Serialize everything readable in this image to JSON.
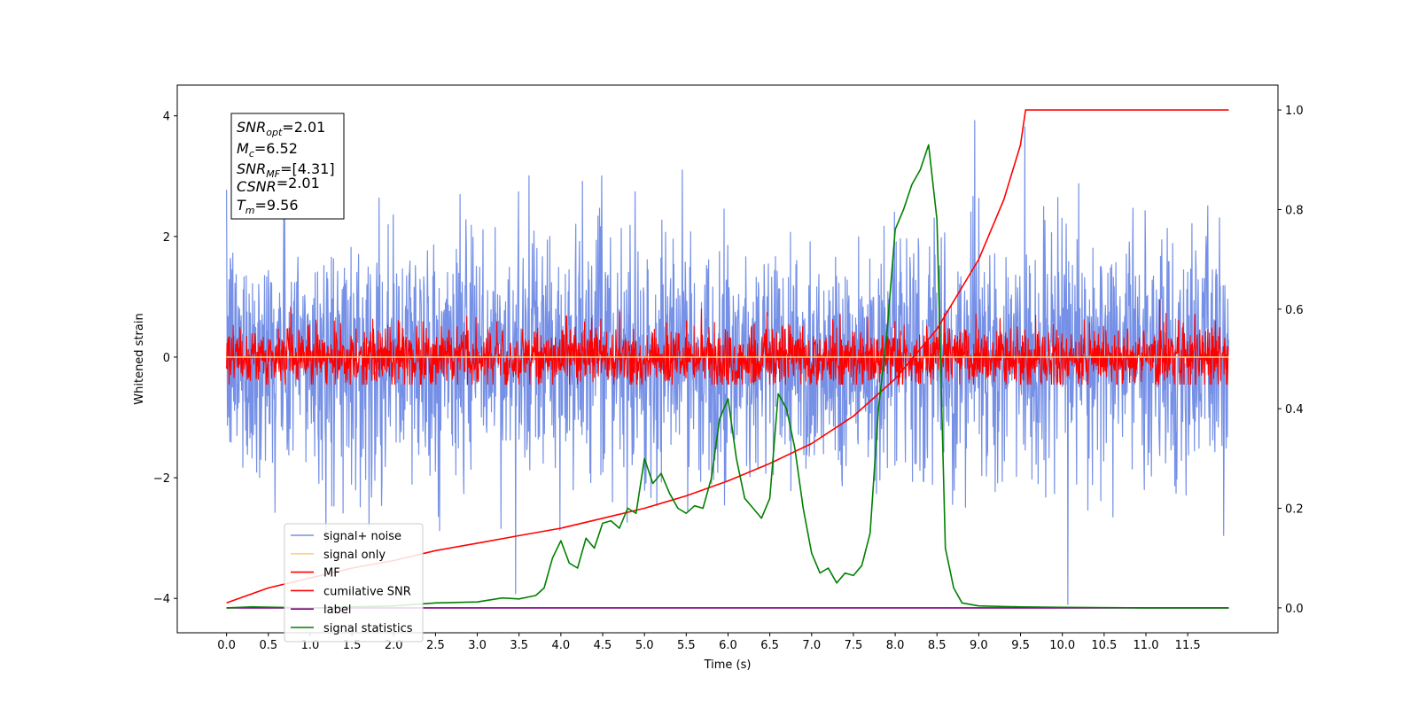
{
  "chart_data": {
    "type": "line",
    "xlabel": "Time (s)",
    "ylabel": "Whitened strain",
    "x_ticks": [
      "0.0",
      "0.5",
      "1.0",
      "1.5",
      "2.0",
      "2.5",
      "3.0",
      "3.5",
      "4.0",
      "4.5",
      "5.0",
      "5.5",
      "6.0",
      "6.5",
      "7.0",
      "7.5",
      "8.0",
      "8.5",
      "9.0",
      "9.5",
      "10.0",
      "10.5",
      "11.0",
      "11.5"
    ],
    "xlim": [
      -0.59,
      12.58
    ],
    "ylim": [
      -4.57,
      4.51
    ],
    "y_ticks": [
      "−4",
      "−2",
      "0",
      "2",
      "4"
    ],
    "y2lim": [
      -0.05,
      1.05
    ],
    "y2_ticks": [
      "0.0",
      "0.2",
      "0.4",
      "0.6",
      "0.8",
      "1.0"
    ],
    "legend_position": "lower-left",
    "annotation": [
      {
        "base": "SNR",
        "sub": "opt",
        "value": "=2.01"
      },
      {
        "base": "M",
        "sub": "c",
        "value": "=6.52"
      },
      {
        "base": "SNR",
        "sub": "MF",
        "value": "=[4.31]"
      },
      {
        "base": "CSNR",
        "sub": "",
        "value": "=2.01"
      },
      {
        "base": "T",
        "sub": "m",
        "value": "=9.56"
      }
    ],
    "series": [
      {
        "name": "signal+ noise",
        "color": "#7590e6",
        "axis": "left",
        "kind": "noise",
        "x_range": [
          0,
          11.99
        ],
        "y_range": [
          -4.1,
          4.1
        ],
        "std": 1.0
      },
      {
        "name": "signal only",
        "color": "#ffd27f",
        "axis": "left",
        "kind": "flat",
        "x_range": [
          0,
          11.99
        ],
        "value": 0
      },
      {
        "name": "MF",
        "color": "#ff0000",
        "axis": "left",
        "kind": "noise",
        "x_range": [
          0,
          11.99
        ],
        "y_range": [
          -0.45,
          0.95
        ],
        "std": 0.25
      },
      {
        "name": "cumilative SNR",
        "color": "#ff0000",
        "axis": "right",
        "x": [
          0,
          0.5,
          1.0,
          1.5,
          2.0,
          2.5,
          3.0,
          3.5,
          4.0,
          4.5,
          5.0,
          5.5,
          6.0,
          6.5,
          7.0,
          7.5,
          8.0,
          8.5,
          9.0,
          9.3,
          9.5,
          9.56,
          11.99
        ],
        "y": [
          0.01,
          0.04,
          0.06,
          0.08,
          0.095,
          0.115,
          0.13,
          0.145,
          0.16,
          0.18,
          0.2,
          0.225,
          0.255,
          0.29,
          0.33,
          0.385,
          0.46,
          0.56,
          0.7,
          0.82,
          0.93,
          1.0,
          1.0
        ]
      },
      {
        "name": "label",
        "color": "#800080",
        "axis": "right",
        "x": [
          0,
          11.99
        ],
        "y": [
          0,
          0
        ]
      },
      {
        "name": "signal statistics",
        "color": "#008000",
        "axis": "right",
        "x": [
          0,
          0.3,
          1.0,
          2.0,
          2.5,
          3.0,
          3.3,
          3.5,
          3.7,
          3.8,
          3.9,
          4.0,
          4.1,
          4.2,
          4.3,
          4.4,
          4.5,
          4.6,
          4.7,
          4.8,
          4.9,
          5.0,
          5.1,
          5.2,
          5.3,
          5.4,
          5.5,
          5.6,
          5.7,
          5.8,
          5.9,
          6.0,
          6.1,
          6.2,
          6.3,
          6.4,
          6.5,
          6.6,
          6.7,
          6.8,
          6.9,
          7.0,
          7.1,
          7.2,
          7.3,
          7.4,
          7.5,
          7.6,
          7.7,
          7.8,
          7.9,
          8.0,
          8.1,
          8.2,
          8.3,
          8.4,
          8.5,
          8.6,
          8.7,
          8.8,
          9.0,
          9.5,
          10.0,
          11.0,
          11.99
        ],
        "y": [
          0.0,
          0.002,
          0.0,
          0.004,
          0.01,
          0.012,
          0.02,
          0.018,
          0.025,
          0.04,
          0.1,
          0.135,
          0.09,
          0.08,
          0.14,
          0.12,
          0.17,
          0.175,
          0.16,
          0.2,
          0.19,
          0.3,
          0.25,
          0.27,
          0.23,
          0.2,
          0.19,
          0.205,
          0.2,
          0.26,
          0.38,
          0.42,
          0.3,
          0.22,
          0.2,
          0.18,
          0.22,
          0.43,
          0.4,
          0.32,
          0.2,
          0.11,
          0.07,
          0.08,
          0.05,
          0.07,
          0.065,
          0.085,
          0.15,
          0.4,
          0.55,
          0.76,
          0.8,
          0.85,
          0.88,
          0.93,
          0.78,
          0.12,
          0.04,
          0.01,
          0.004,
          0.002,
          0.001,
          0.0,
          0.0
        ]
      }
    ]
  }
}
